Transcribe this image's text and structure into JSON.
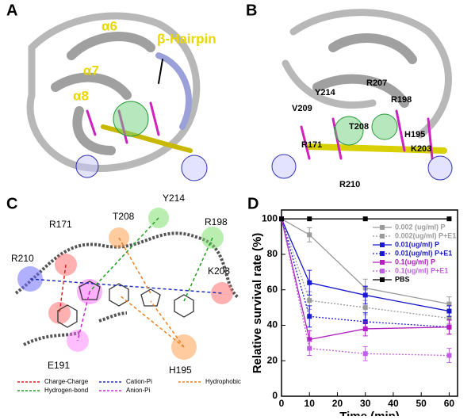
{
  "panel_labels": [
    "A",
    "B",
    "C",
    "D"
  ],
  "panel_a": {
    "labels": [
      "α6",
      "α7",
      "α8",
      "β-Hairpin"
    ]
  },
  "panel_b": {
    "labels": [
      "Y214",
      "R207",
      "V209",
      "R198",
      "T208",
      "H195",
      "R171",
      "K203",
      "R210"
    ]
  },
  "panel_c": {
    "residues": [
      "R171",
      "T208",
      "Y214",
      "R198",
      "R210",
      "K203",
      "E191",
      "H195"
    ],
    "legend": [
      {
        "label": "Charge-Charge",
        "color": "#e02020"
      },
      {
        "label": "Hydrogen-bond",
        "color": "#20a020"
      },
      {
        "label": "Cation-Pi",
        "color": "#2030c0"
      },
      {
        "label": "Anion-Pi",
        "color": "#d020d0"
      },
      {
        "label": "Hydrophobic",
        "color": "#f08020"
      }
    ]
  },
  "chart_data": {
    "type": "line",
    "xlabel": "Time (min)",
    "ylabel": "Relative survival rate (%)",
    "x": [
      0,
      10,
      30,
      60
    ],
    "xlim": [
      0,
      63
    ],
    "xticks": [
      0,
      10,
      20,
      30,
      40,
      50,
      60
    ],
    "ylim": [
      0,
      105
    ],
    "yticks": [
      0,
      20,
      40,
      60,
      80,
      100
    ],
    "series": [
      {
        "name": "0.002 (ug/ml) P",
        "color": "#9a9a9a",
        "dash": false,
        "values": [
          100,
          91,
          61,
          52
        ],
        "errors": [
          0,
          4,
          5,
          4
        ]
      },
      {
        "name": "0.002(ug/ml) P+E1",
        "color": "#9a9a9a",
        "dash": true,
        "values": [
          100,
          54,
          50,
          44
        ],
        "errors": [
          0,
          5,
          4,
          3
        ]
      },
      {
        "name": "0.01(ug/ml) P",
        "color": "#1a1acc",
        "dash": false,
        "values": [
          100,
          64,
          57,
          48
        ],
        "errors": [
          0,
          7,
          5,
          3
        ]
      },
      {
        "name": "0.01(ug/ml) P+E1",
        "color": "#1a1acc",
        "dash": true,
        "values": [
          100,
          45,
          42,
          39
        ],
        "errors": [
          0,
          6,
          5,
          4
        ]
      },
      {
        "name": "0.1(ug/ml) P",
        "color": "#b020c0",
        "dash": false,
        "values": [
          100,
          32,
          38,
          39
        ],
        "errors": [
          0,
          5,
          4,
          4
        ]
      },
      {
        "name": "0.1(ug/ml) P+E1",
        "color": "#c060e0",
        "dash": true,
        "values": [
          100,
          27,
          24,
          23
        ],
        "errors": [
          0,
          4,
          4,
          4
        ]
      },
      {
        "name": "PBS",
        "color": "#000000",
        "dash": false,
        "values": [
          100,
          100,
          100,
          100
        ],
        "errors": [
          0,
          0,
          0,
          0
        ]
      }
    ]
  }
}
